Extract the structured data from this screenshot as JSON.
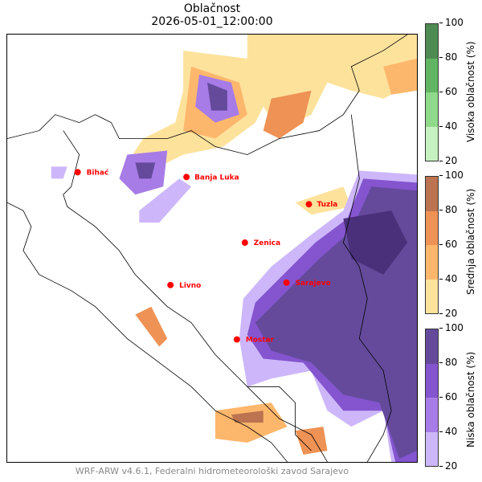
{
  "title": "Oblačnost",
  "subtitle": "2026-05-01_12:00:00",
  "footer": "WRF-ARW v4.6.1, Federalni hidrometeorološki zavod Sarajevo",
  "cities": [
    {
      "name": "Bihać"
    },
    {
      "name": "Banja Luka"
    },
    {
      "name": "Tuzla"
    },
    {
      "name": "Zenica"
    },
    {
      "name": "Livno"
    },
    {
      "name": "Sarajevo"
    },
    {
      "name": "Mostar"
    }
  ],
  "colorbars": [
    {
      "label": "Visoka oblačnost (%)",
      "ticks": [
        "100",
        "80",
        "60",
        "40",
        "20"
      ],
      "colors": [
        "#c5f2c0",
        "#8fd98a",
        "#62b562",
        "#4e8b52"
      ]
    },
    {
      "label": "Srednja oblačnost (%)",
      "ticks": [
        "100",
        "80",
        "60",
        "40",
        "20"
      ],
      "colors": [
        "#fde29c",
        "#fdb76c",
        "#ee9255",
        "#bb7350"
      ]
    },
    {
      "label": "Niska oblačnost (%)",
      "ticks": [
        "100",
        "80",
        "60",
        "40",
        "20"
      ],
      "colors": [
        "#cdb7fa",
        "#a77ce6",
        "#8455cf",
        "#654a9c"
      ]
    }
  ]
}
